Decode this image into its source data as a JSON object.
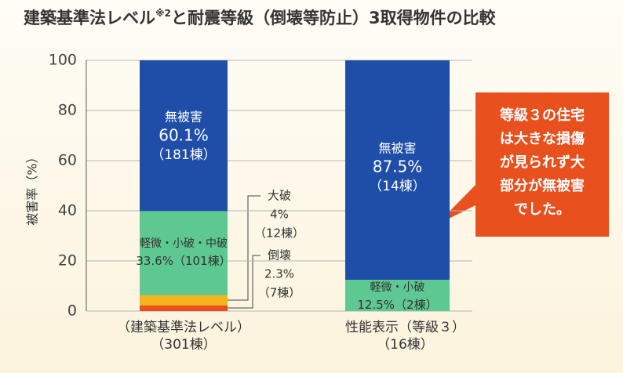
{
  "chart_data": {
    "type": "stacked_bar",
    "title": [
      "建築基準法レベル",
      "※2",
      "と耐震等級（倒壊等防止）3取得物件の比較"
    ],
    "ylabel": "被害率（%）",
    "categories": [
      [
        "（建築基準法レベル）",
        "（301棟）"
      ],
      [
        "性能表示（等級３）",
        "（16棟）"
      ]
    ],
    "ylim": [
      0,
      100
    ],
    "yticks": [
      0,
      20,
      40,
      60,
      80,
      100
    ],
    "grid": true,
    "series": [
      {
        "color": "#e8501e",
        "values": [
          2.3,
          null
        ],
        "label_names": [
          "倒壊",
          null
        ],
        "value_labels": [
          "2.3%",
          null
        ],
        "counts": [
          "（7棟）",
          null
        ]
      },
      {
        "color": "#f6b41c",
        "values": [
          4,
          null
        ],
        "label_names": [
          "大破",
          null
        ],
        "value_labels": [
          "4%",
          null
        ],
        "counts": [
          "（12棟）",
          null
        ]
      },
      {
        "color": "#5ec893",
        "values": [
          33.6,
          12.5
        ],
        "label_names": [
          "軽微・小破・中破",
          "軽微・小破"
        ],
        "value_labels": [
          "33.6%",
          "12.5%"
        ],
        "counts": [
          "（101棟）",
          "（2棟）"
        ]
      },
      {
        "color": "#1f4ea8",
        "values": [
          60.1,
          87.5
        ],
        "label_names": [
          "無被害",
          "無被害"
        ],
        "value_labels": [
          "60.1%",
          "87.5%"
        ],
        "counts": [
          "（181棟）",
          "（14棟）"
        ]
      }
    ],
    "annotation": [
      "等級３の住宅",
      "は大きな損傷",
      "が見られず大",
      "部分が無被害",
      "でした。"
    ]
  }
}
